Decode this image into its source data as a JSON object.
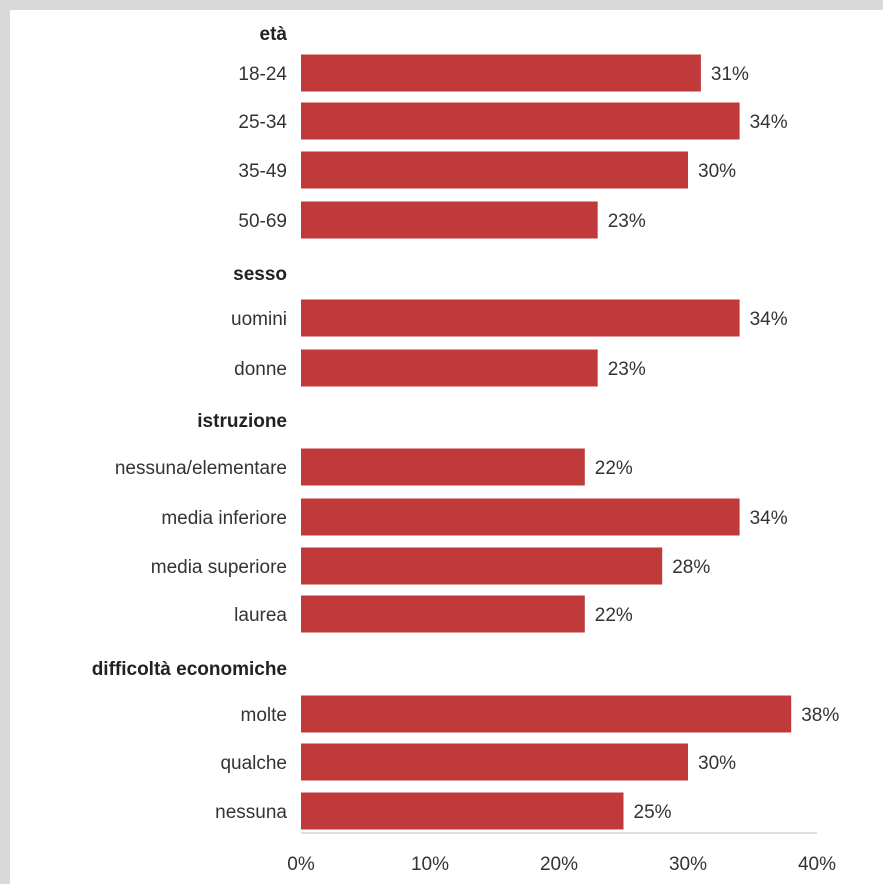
{
  "chart_data": {
    "type": "bar",
    "orientation": "horizontal",
    "bar_color": "#c0393b",
    "value_suffix": "%",
    "xlim": [
      0,
      40
    ],
    "ticks": [
      "0%",
      "10%",
      "20%",
      "30%",
      "40%"
    ],
    "groups": [
      {
        "label": "età",
        "categories": [
          "18-24",
          "25-34",
          "35-49",
          "50-69"
        ],
        "values": [
          31,
          34,
          30,
          23
        ]
      },
      {
        "label": "sesso",
        "categories": [
          "uomini",
          "donne"
        ],
        "values": [
          34,
          23
        ]
      },
      {
        "label": "istruzione",
        "categories": [
          "nessuna/elementare",
          "media inferiore",
          "media superiore",
          "laurea"
        ],
        "values": [
          22,
          34,
          28,
          22
        ]
      },
      {
        "label": "difficoltà economiche",
        "categories": [
          "molte",
          "qualche",
          "nessuna"
        ],
        "values": [
          38,
          30,
          25
        ]
      }
    ]
  }
}
